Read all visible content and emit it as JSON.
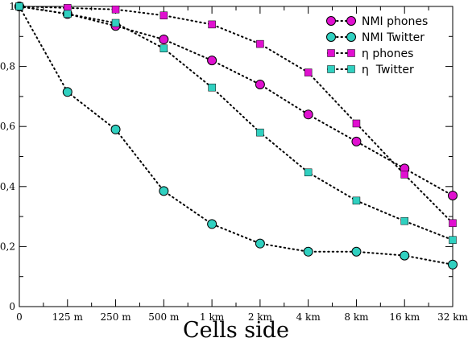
{
  "chart_data": {
    "type": "line",
    "categories": [
      "0",
      "125 m",
      "250 m",
      "500 m",
      "1 km",
      "2 km",
      "4 km",
      "8 km",
      "16 km",
      "32 km"
    ],
    "xlabel": "Cells side",
    "ylabel": "",
    "title": "",
    "ylim": [
      0,
      1
    ],
    "yticks": [
      {
        "value": 0,
        "label": "0"
      },
      {
        "value": 0.2,
        "label": "0,2"
      },
      {
        "value": 0.4,
        "label": "0,4"
      },
      {
        "value": 0.6,
        "label": "0,6"
      },
      {
        "value": 0.8,
        "label": "0,8"
      },
      {
        "value": 1,
        "label": "1"
      }
    ],
    "legend_position": "top-right",
    "grid": false,
    "series": [
      {
        "name": "NMI phones",
        "marker": "circle",
        "color": "#e010d0",
        "values": [
          1.0,
          0.975,
          0.935,
          0.89,
          0.82,
          0.74,
          0.64,
          0.55,
          0.46,
          0.37
        ]
      },
      {
        "name": "NMI Twitter",
        "marker": "circle",
        "color": "#30d0c0",
        "values": [
          1.0,
          0.715,
          0.59,
          0.385,
          0.275,
          0.21,
          0.183,
          0.183,
          0.17,
          0.14
        ]
      },
      {
        "name": "η phones",
        "marker": "square",
        "color": "#e010d0",
        "values": [
          1.0,
          0.995,
          0.99,
          0.97,
          0.94,
          0.875,
          0.78,
          0.61,
          0.44,
          0.278
        ]
      },
      {
        "name": "η  Twitter",
        "marker": "square",
        "color": "#30d0c0",
        "values": [
          1.0,
          0.975,
          0.945,
          0.86,
          0.73,
          0.58,
          0.447,
          0.353,
          0.285,
          0.222
        ]
      }
    ]
  }
}
